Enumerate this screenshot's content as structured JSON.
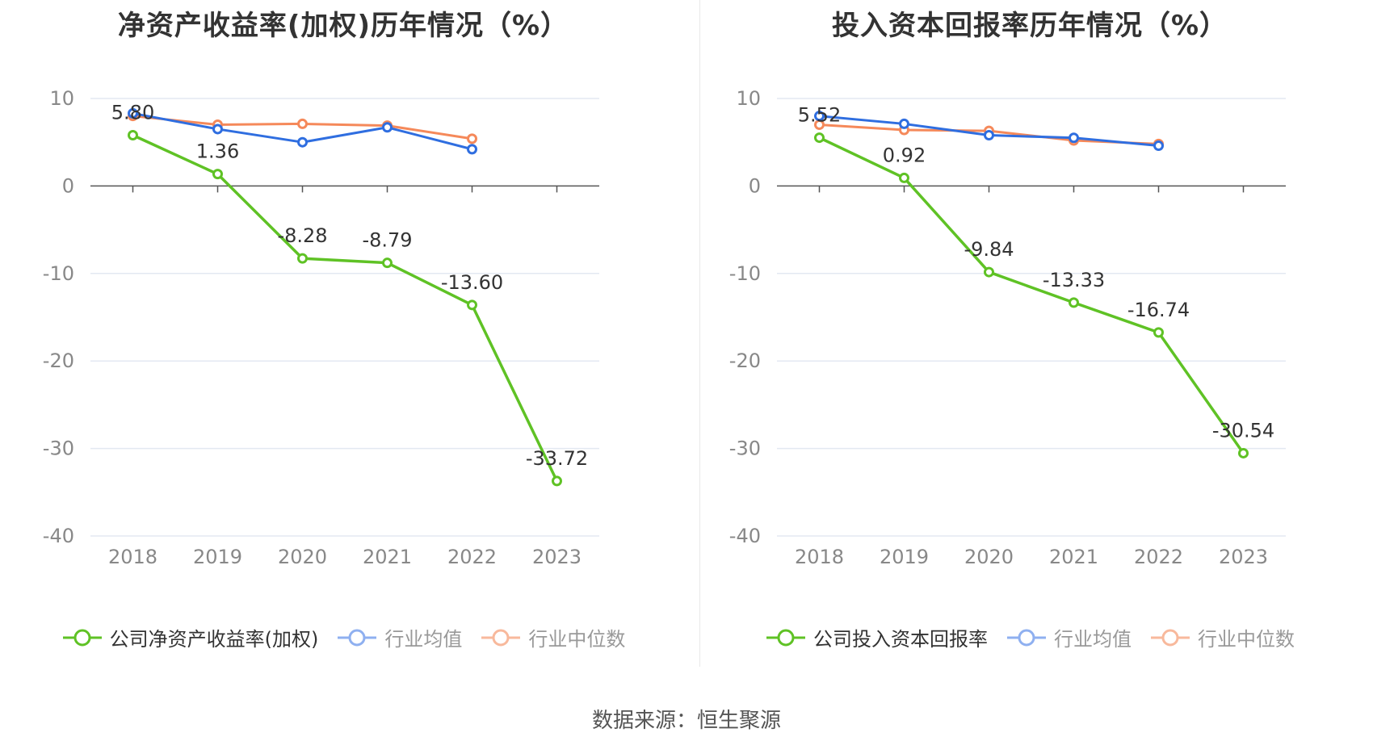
{
  "colors": {
    "company": "#5fc225",
    "average": "#2f6ee0",
    "median": "#f5895a",
    "grid": "#e3e8f2",
    "axis": "#555555",
    "label": "#333333",
    "tick": "#888888"
  },
  "footer": "数据来源：恒生聚源",
  "chart_data": [
    {
      "type": "line",
      "title": "净资产收益率(加权)历年情况（%）",
      "categories": [
        "2018",
        "2019",
        "2020",
        "2021",
        "2022",
        "2023"
      ],
      "ylim": [
        -40,
        10
      ],
      "yticks": [
        "10",
        "0",
        "-10",
        "-20",
        "-30",
        "-40"
      ],
      "grid": true,
      "legend_position": "bottom",
      "series": [
        {
          "key": "company",
          "name": "公司净资产收益率(加权)",
          "values": [
            5.8,
            1.36,
            -8.28,
            -8.79,
            -13.6,
            -33.72
          ],
          "labels": [
            "5.80",
            "1.36",
            "-8.28",
            "-8.79",
            "-13.60",
            "-33.72"
          ]
        },
        {
          "key": "average",
          "name": "行业均值",
          "values": [
            8.3,
            6.5,
            5.0,
            6.7,
            4.2,
            null
          ]
        },
        {
          "key": "median",
          "name": "行业中位数",
          "values": [
            8.0,
            7.0,
            7.1,
            6.9,
            5.4,
            null
          ]
        }
      ]
    },
    {
      "type": "line",
      "title": "投入资本回报率历年情况（%）",
      "categories": [
        "2018",
        "2019",
        "2020",
        "2021",
        "2022",
        "2023"
      ],
      "ylim": [
        -40,
        10
      ],
      "yticks": [
        "10",
        "0",
        "-10",
        "-20",
        "-30",
        "-40"
      ],
      "grid": true,
      "legend_position": "bottom",
      "series": [
        {
          "key": "company",
          "name": "公司投入资本回报率",
          "values": [
            5.52,
            0.92,
            -9.84,
            -13.33,
            -16.74,
            -30.54
          ],
          "labels": [
            "5.52",
            "0.92",
            "-9.84",
            "-13.33",
            "-16.74",
            "-30.54"
          ]
        },
        {
          "key": "average",
          "name": "行业均值",
          "values": [
            8.0,
            7.1,
            5.8,
            5.5,
            4.6,
            null
          ]
        },
        {
          "key": "median",
          "name": "行业中位数",
          "values": [
            7.0,
            6.4,
            6.3,
            5.2,
            4.8,
            null
          ]
        }
      ]
    }
  ]
}
